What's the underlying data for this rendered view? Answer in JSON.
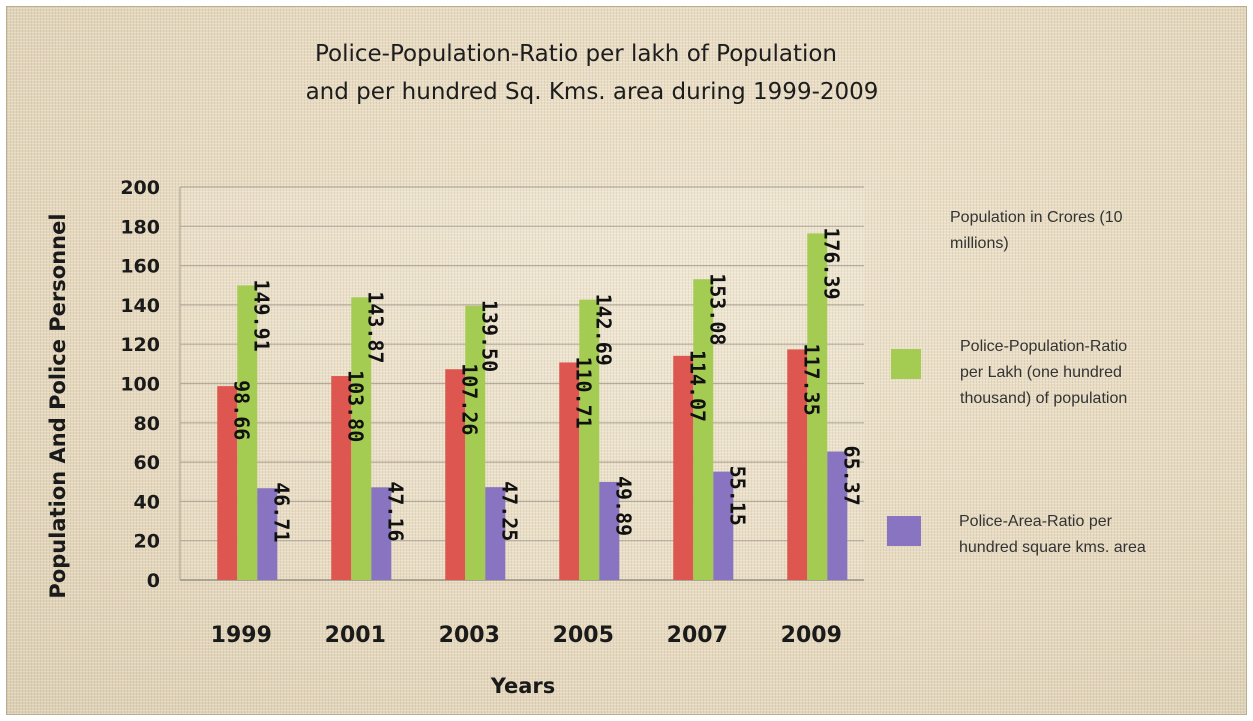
{
  "chart_data": {
    "type": "bar",
    "title": [
      "Police-Population-Ratio per lakh of Population",
      "and per hundred Sq. Kms. area during 1999-2009"
    ],
    "xlabel": "Years",
    "ylabel": "Population And Police Personnel",
    "ylim": [
      0,
      200
    ],
    "yticks": [
      0,
      20,
      40,
      60,
      80,
      100,
      120,
      140,
      160,
      180,
      200
    ],
    "categories": [
      "1999",
      "2001",
      "2003",
      "2005",
      "2007",
      "2009"
    ],
    "grid": true,
    "legend_position": "right",
    "series": [
      {
        "name": "Population in Crores (10 millions)",
        "color": "#de5650",
        "values": [
          98.66,
          103.8,
          107.26,
          110.71,
          114.07,
          117.35
        ],
        "labels": [
          "98.66",
          "103.80",
          "107.26",
          "110.71",
          "114.07",
          "117.35"
        ],
        "show_legend_swatch": false
      },
      {
        "name": "Police-Population-Ratio per Lakh (one hundred thousand) of population",
        "color": "#a4cc52",
        "values": [
          149.91,
          143.87,
          139.5,
          142.69,
          153.08,
          176.39
        ],
        "labels": [
          "149.91",
          "143.87",
          "139.50",
          "142.69",
          "153.08",
          "176.39"
        ],
        "show_legend_swatch": true
      },
      {
        "name": "Police-Area-Ratio per hundred square kms. area",
        "color": "#8874c0",
        "values": [
          46.71,
          47.16,
          47.25,
          49.89,
          55.15,
          65.37
        ],
        "labels": [
          "46.71",
          "47.16",
          "47.25",
          "49.89",
          "55.15",
          "65.37"
        ],
        "show_legend_swatch": true
      }
    ]
  }
}
